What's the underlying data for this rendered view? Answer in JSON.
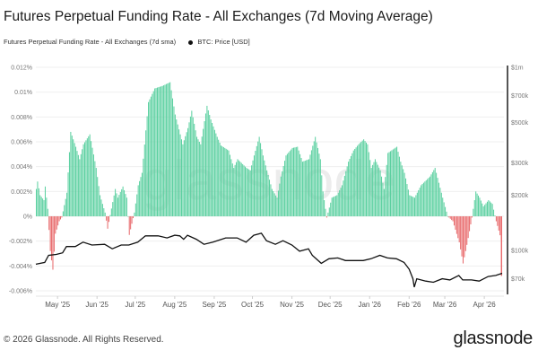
{
  "chart_data": {
    "type": "bar+line",
    "title": "Futures Perpetual Funding Rate - All Exchanges (7d Moving Average)",
    "watermark": "glassnode",
    "grid": true,
    "legend_placement": "top-left",
    "left_axis": {
      "unit": "%",
      "ylim": [
        -0.006,
        0.012
      ],
      "tick_labels": [
        "0.012%",
        "0.01%",
        "0.008%",
        "0.006%",
        "0.004%",
        "0.002%",
        "0%",
        "-0.002%",
        "-0.004%",
        "-0.006%"
      ],
      "tick_values": [
        0.012,
        0.01,
        0.008,
        0.006,
        0.004,
        0.002,
        0,
        -0.002,
        -0.004,
        -0.006
      ]
    },
    "right_axis": {
      "scale": "log",
      "tick_labels": [
        "$1m",
        "$700k",
        "$500k",
        "$300k",
        "$200k",
        "$100k",
        "$70k"
      ],
      "tick_values": [
        1000000,
        700000,
        500000,
        300000,
        200000,
        100000,
        70000
      ]
    },
    "x_tick_labels": [
      {
        "label": "May '25",
        "date": "2025-05-01"
      },
      {
        "label": "Jun '25",
        "date": "2025-06-01"
      },
      {
        "label": "Jul '25",
        "date": "2025-07-01"
      },
      {
        "label": "Aug '25",
        "date": "2025-08-01"
      },
      {
        "label": "Sep '25",
        "date": "2025-09-01"
      },
      {
        "label": "Oct '25",
        "date": "2025-10-01"
      },
      {
        "label": "Nov '25",
        "date": "2025-11-01"
      },
      {
        "label": "Dec '25",
        "date": "2025-12-01"
      },
      {
        "label": "Jan '26",
        "date": "2026-01-01"
      },
      {
        "label": "Feb '26",
        "date": "2026-02-01"
      },
      {
        "label": "Mar '26",
        "date": "2026-03-01"
      },
      {
        "label": "Apr '26",
        "date": "2026-04-01"
      }
    ],
    "colors": {
      "positive": "#5bd0a0",
      "negative": "#e8696b",
      "price": "#111111",
      "axis": "#555555"
    },
    "series": [
      {
        "name": "Futures Perpetual Funding Rate - All Exchanges (7d sma)",
        "type": "bar",
        "unit": "%",
        "points": [
          [
            "2025-04-14",
            0.0022
          ],
          [
            "2025-04-15",
            0.0028
          ],
          [
            "2025-04-17",
            0.0017
          ],
          [
            "2025-04-20",
            0.0013
          ],
          [
            "2025-04-21",
            0.0024
          ],
          [
            "2025-04-23",
            0.0006
          ],
          [
            "2025-04-25",
            -0.0028
          ],
          [
            "2025-04-27",
            -0.0043
          ],
          [
            "2025-04-29",
            -0.0014
          ],
          [
            "2025-05-02",
            -0.0004
          ],
          [
            "2025-05-04",
            -0.0001
          ],
          [
            "2025-05-08",
            0.0019
          ],
          [
            "2025-05-11",
            0.0068
          ],
          [
            "2025-05-15",
            0.0056
          ],
          [
            "2025-05-18",
            0.0046
          ],
          [
            "2025-05-21",
            0.0058
          ],
          [
            "2025-05-26",
            0.0066
          ],
          [
            "2025-05-31",
            0.0039
          ],
          [
            "2025-06-03",
            0.0017
          ],
          [
            "2025-06-07",
            0.0003
          ],
          [
            "2025-06-09",
            -0.001
          ],
          [
            "2025-06-11",
            0.0001
          ],
          [
            "2025-06-15",
            0.0022
          ],
          [
            "2025-06-17",
            0.0015
          ],
          [
            "2025-06-21",
            0.0024
          ],
          [
            "2025-06-24",
            0.0015
          ],
          [
            "2025-06-26",
            -0.0015
          ],
          [
            "2025-06-30",
            0.0003
          ],
          [
            "2025-07-03",
            0.0025
          ],
          [
            "2025-07-06",
            0.0035
          ],
          [
            "2025-07-11",
            0.0092
          ],
          [
            "2025-07-16",
            0.0103
          ],
          [
            "2025-07-22",
            0.0105
          ],
          [
            "2025-07-28",
            0.0108
          ],
          [
            "2025-08-01",
            0.0082
          ],
          [
            "2025-08-07",
            0.0058
          ],
          [
            "2025-08-11",
            0.0071
          ],
          [
            "2025-08-14",
            0.0085
          ],
          [
            "2025-08-18",
            0.0064
          ],
          [
            "2025-08-21",
            0.0058
          ],
          [
            "2025-08-26",
            0.0089
          ],
          [
            "2025-08-29",
            0.0078
          ],
          [
            "2025-09-03",
            0.0064
          ],
          [
            "2025-09-06",
            0.0057
          ],
          [
            "2025-09-12",
            0.0053
          ],
          [
            "2025-09-16",
            0.0039
          ],
          [
            "2025-09-19",
            0.0046
          ],
          [
            "2025-09-23",
            0.0042
          ],
          [
            "2025-09-26",
            0.0039
          ],
          [
            "2025-09-29",
            0.0037
          ],
          [
            "2025-10-02",
            0.0049
          ],
          [
            "2025-10-06",
            0.0064
          ],
          [
            "2025-10-09",
            0.0049
          ],
          [
            "2025-10-12",
            0.0037
          ],
          [
            "2025-10-16",
            0.0022
          ],
          [
            "2025-10-20",
            0.0015
          ],
          [
            "2025-10-23",
            0.0032
          ],
          [
            "2025-10-27",
            0.0049
          ],
          [
            "2025-11-01",
            0.0055
          ],
          [
            "2025-11-05",
            0.0056
          ],
          [
            "2025-11-09",
            0.0044
          ],
          [
            "2025-11-14",
            0.0046
          ],
          [
            "2025-11-19",
            0.0064
          ],
          [
            "2025-11-23",
            0.0046
          ],
          [
            "2025-11-25",
            0.002
          ],
          [
            "2025-11-28",
            -0.0001
          ],
          [
            "2025-12-02",
            0.0015
          ],
          [
            "2025-12-06",
            0.0017
          ],
          [
            "2025-12-10",
            0.0025
          ],
          [
            "2025-12-15",
            0.0044
          ],
          [
            "2025-12-19",
            0.0053
          ],
          [
            "2025-12-23",
            0.0058
          ],
          [
            "2025-12-27",
            0.0062
          ],
          [
            "2025-12-30",
            0.0058
          ],
          [
            "2026-01-02",
            0.0039
          ],
          [
            "2026-01-05",
            0.0046
          ],
          [
            "2026-01-09",
            0.0037
          ],
          [
            "2026-01-12",
            0.0022
          ],
          [
            "2026-01-15",
            0.0051
          ],
          [
            "2026-01-22",
            0.0056
          ],
          [
            "2026-01-25",
            0.0044
          ],
          [
            "2026-01-28",
            0.0035
          ],
          [
            "2026-02-01",
            0.0017
          ],
          [
            "2026-02-05",
            0.0015
          ],
          [
            "2026-02-10",
            0.0025
          ],
          [
            "2026-02-17",
            0.0032
          ],
          [
            "2026-02-21",
            0.0039
          ],
          [
            "2026-02-27",
            0.0015
          ],
          [
            "2026-03-03",
            0.0
          ],
          [
            "2026-03-07",
            -0.0004
          ],
          [
            "2026-03-12",
            -0.0021
          ],
          [
            "2026-03-15",
            -0.0038
          ],
          [
            "2026-03-18",
            -0.0023
          ],
          [
            "2026-03-22",
            -0.0001
          ],
          [
            "2026-03-25",
            0.002
          ],
          [
            "2026-03-28",
            0.0015
          ],
          [
            "2026-03-31",
            0.0008
          ],
          [
            "2026-04-04",
            0.0013
          ],
          [
            "2026-04-07",
            0.001
          ],
          [
            "2026-04-10",
            -0.0004
          ],
          [
            "2026-04-14",
            -0.0019
          ],
          [
            "2026-04-15",
            -0.0048
          ]
        ]
      },
      {
        "name": "BTC: Price [USD]",
        "type": "line",
        "points": [
          [
            "2025-04-14",
            84000
          ],
          [
            "2025-04-21",
            86000
          ],
          [
            "2025-04-24",
            94000
          ],
          [
            "2025-04-30",
            95000
          ],
          [
            "2025-05-05",
            97000
          ],
          [
            "2025-05-08",
            105000
          ],
          [
            "2025-05-15",
            105000
          ],
          [
            "2025-05-21",
            111000
          ],
          [
            "2025-05-28",
            107000
          ],
          [
            "2025-06-07",
            108000
          ],
          [
            "2025-06-13",
            102000
          ],
          [
            "2025-06-20",
            107000
          ],
          [
            "2025-06-26",
            107000
          ],
          [
            "2025-07-03",
            111000
          ],
          [
            "2025-07-09",
            120000
          ],
          [
            "2025-07-19",
            120000
          ],
          [
            "2025-07-26",
            117000
          ],
          [
            "2025-08-01",
            121000
          ],
          [
            "2025-08-05",
            120000
          ],
          [
            "2025-08-08",
            115000
          ],
          [
            "2025-08-11",
            121000
          ],
          [
            "2025-08-18",
            115000
          ],
          [
            "2025-08-24",
            108000
          ],
          [
            "2025-08-31",
            111000
          ],
          [
            "2025-09-10",
            117000
          ],
          [
            "2025-09-19",
            117000
          ],
          [
            "2025-09-26",
            111000
          ],
          [
            "2025-10-02",
            121000
          ],
          [
            "2025-10-08",
            124000
          ],
          [
            "2025-10-12",
            113000
          ],
          [
            "2025-10-19",
            108000
          ],
          [
            "2025-10-25",
            113000
          ],
          [
            "2025-11-01",
            107000
          ],
          [
            "2025-11-07",
            99000
          ],
          [
            "2025-11-14",
            102000
          ],
          [
            "2025-11-17",
            94000
          ],
          [
            "2025-11-24",
            85000
          ],
          [
            "2025-11-30",
            90000
          ],
          [
            "2025-12-07",
            91000
          ],
          [
            "2025-12-13",
            88000
          ],
          [
            "2025-12-20",
            88000
          ],
          [
            "2025-12-27",
            88000
          ],
          [
            "2026-01-02",
            90000
          ],
          [
            "2026-01-09",
            94000
          ],
          [
            "2026-01-15",
            91000
          ],
          [
            "2026-01-22",
            90000
          ],
          [
            "2026-01-28",
            86000
          ],
          [
            "2026-02-01",
            79000
          ],
          [
            "2026-02-04",
            70000
          ],
          [
            "2026-02-05",
            63000
          ],
          [
            "2026-02-07",
            70000
          ],
          [
            "2026-02-14",
            68000
          ],
          [
            "2026-02-20",
            67000
          ],
          [
            "2026-02-27",
            70000
          ],
          [
            "2026-03-05",
            69000
          ],
          [
            "2026-03-12",
            73000
          ],
          [
            "2026-03-15",
            69000
          ],
          [
            "2026-03-22",
            69000
          ],
          [
            "2026-03-28",
            68000
          ],
          [
            "2026-04-04",
            72000
          ],
          [
            "2026-04-10",
            73000
          ],
          [
            "2026-04-15",
            75000
          ]
        ]
      }
    ]
  },
  "legend": {
    "funding_label": "Futures Perpetual Funding Rate - All Exchanges (7d sma)",
    "price_label": "BTC: Price [USD]"
  },
  "footer": {
    "copyright": "© 2026 Glassnode. All Rights Reserved.",
    "logo": "glassnode"
  }
}
